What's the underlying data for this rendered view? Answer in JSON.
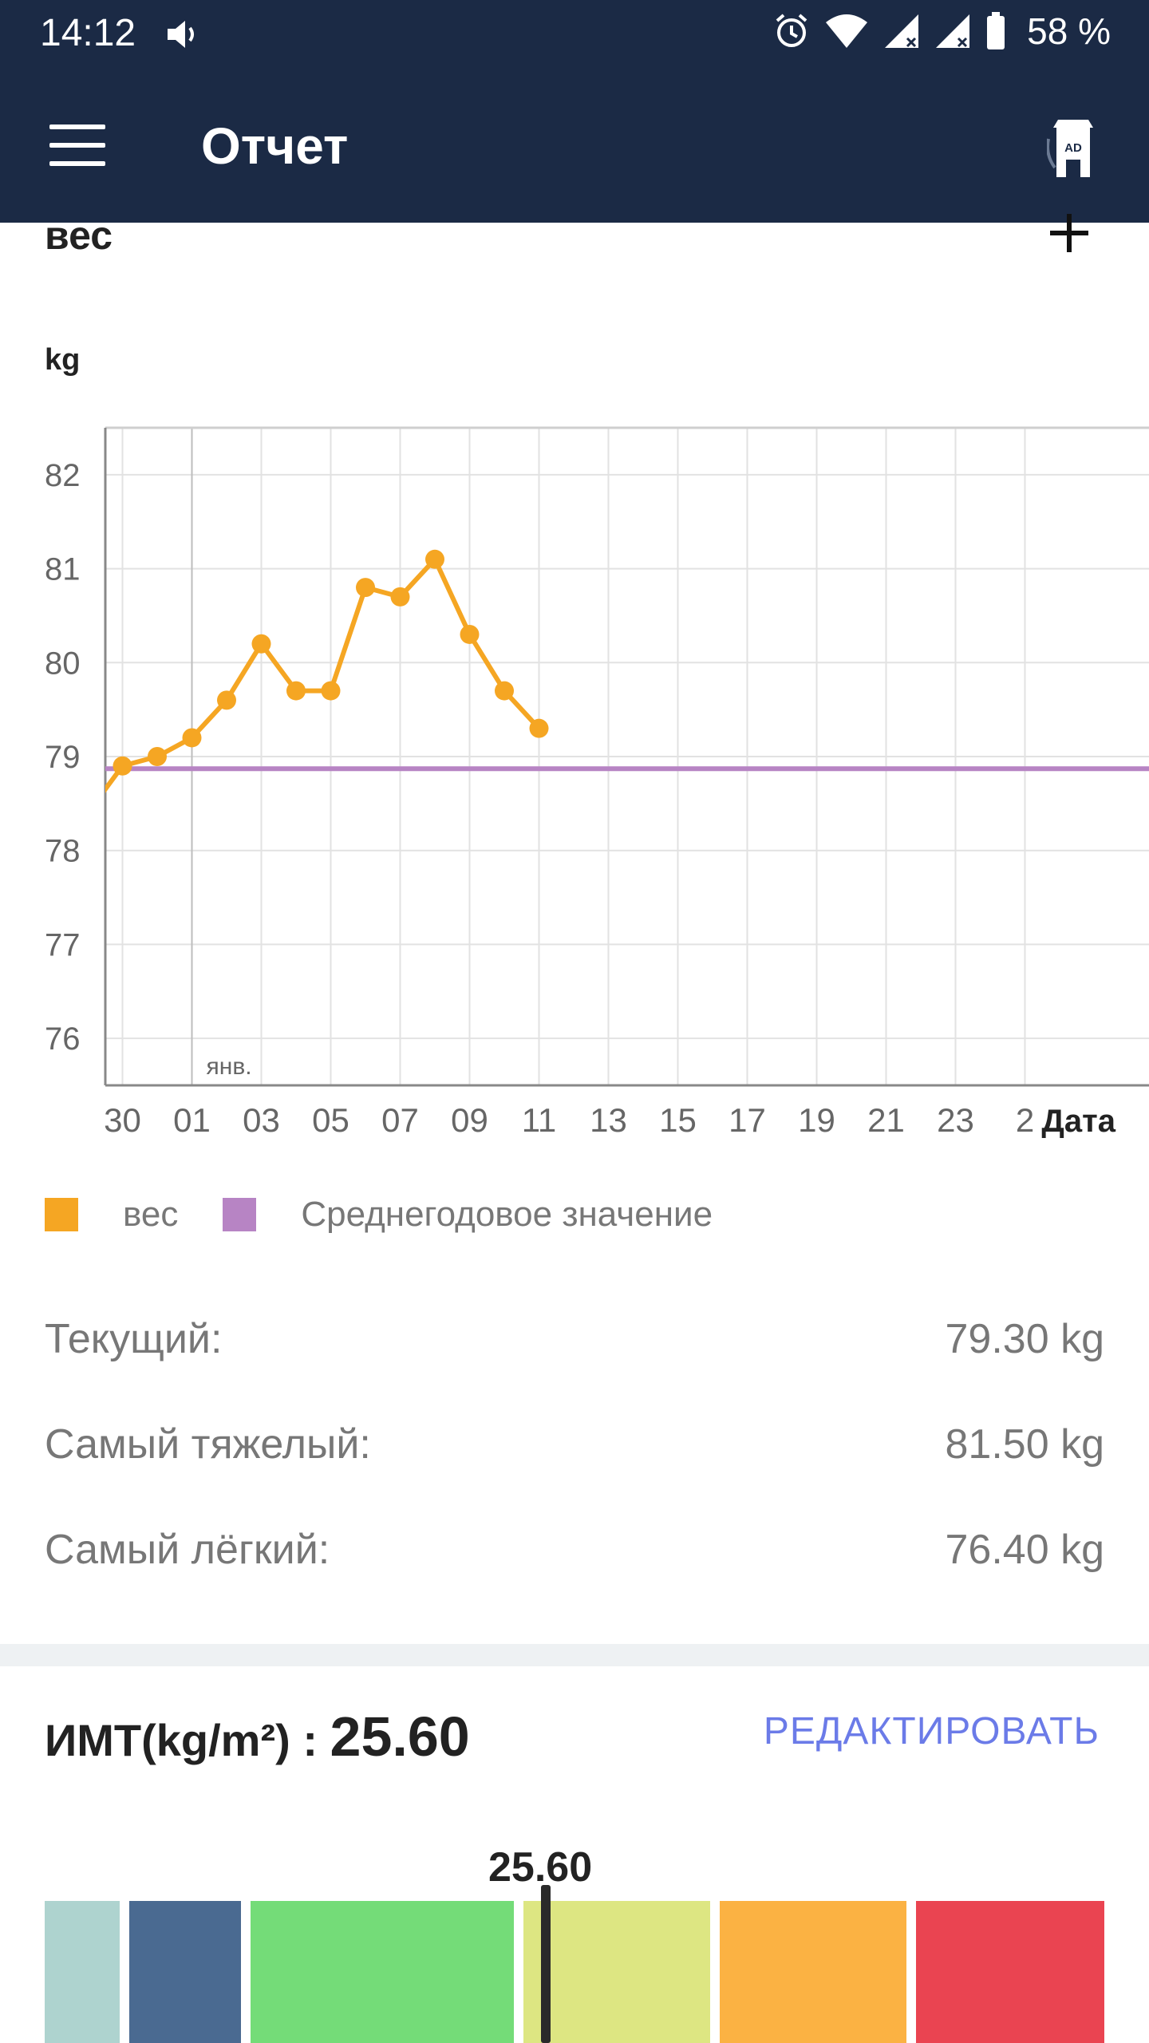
{
  "status_bar": {
    "time": "14:12",
    "battery_percent": "58 %",
    "icons": [
      "sound-icon",
      "alarm-icon",
      "wifi-icon",
      "signal-icon",
      "signal-icon",
      "battery-icon"
    ]
  },
  "app_bar": {
    "title": "Отчет",
    "menu_icon": "hamburger-menu-icon",
    "ad_icon": "ad-tower-icon"
  },
  "weight_section": {
    "title": "вес",
    "add_icon": "plus-icon"
  },
  "chart_data": {
    "type": "line",
    "ylabel": "kg",
    "xlabel": "Дата",
    "ylim": [
      75.5,
      82.5
    ],
    "y_ticks": [
      76,
      77,
      78,
      79,
      80,
      81,
      82
    ],
    "x_tick_labels": [
      "30",
      "01",
      "03",
      "05",
      "07",
      "09",
      "11",
      "13",
      "15",
      "17",
      "19",
      "21",
      "23",
      "2"
    ],
    "month_label": "янв.",
    "grid": true,
    "legend_position": "bottom",
    "series": [
      {
        "name": "вес",
        "color": "#f5a623",
        "x": [
          "29 дек.",
          "30 дек.",
          "31 дек.",
          "01 янв.",
          "02 янв.",
          "03 янв.",
          "04 янв.",
          "05 янв.",
          "06 янв.",
          "07 янв.",
          "08 янв.",
          "09 янв.",
          "10 янв.",
          "11 янв."
        ],
        "values": [
          78.4,
          78.9,
          79.0,
          79.2,
          79.6,
          80.2,
          79.7,
          79.7,
          80.8,
          80.7,
          81.1,
          80.3,
          79.7,
          79.3
        ]
      },
      {
        "name": "Среднегодовое значение",
        "color": "#b784c4",
        "constant": 78.87
      }
    ]
  },
  "stats": [
    {
      "label": "Текущий:",
      "value": "79.30 kg"
    },
    {
      "label": "Самый тяжелый:",
      "value": "81.50 kg"
    },
    {
      "label": "Самый лёгкий:",
      "value": "76.40 kg"
    }
  ],
  "bmi": {
    "label": "ИМТ(kg/m²) : ",
    "value": "25.60",
    "edit_label": "РЕДАКТИРОВАТЬ",
    "gauge_value_text": "25.60",
    "gauge_level": 25.6,
    "segment_colors": [
      "#aed3cf",
      "#4a6a91",
      "#74dc78",
      "#dde682",
      "#fbb243",
      "#ea4451"
    ]
  }
}
